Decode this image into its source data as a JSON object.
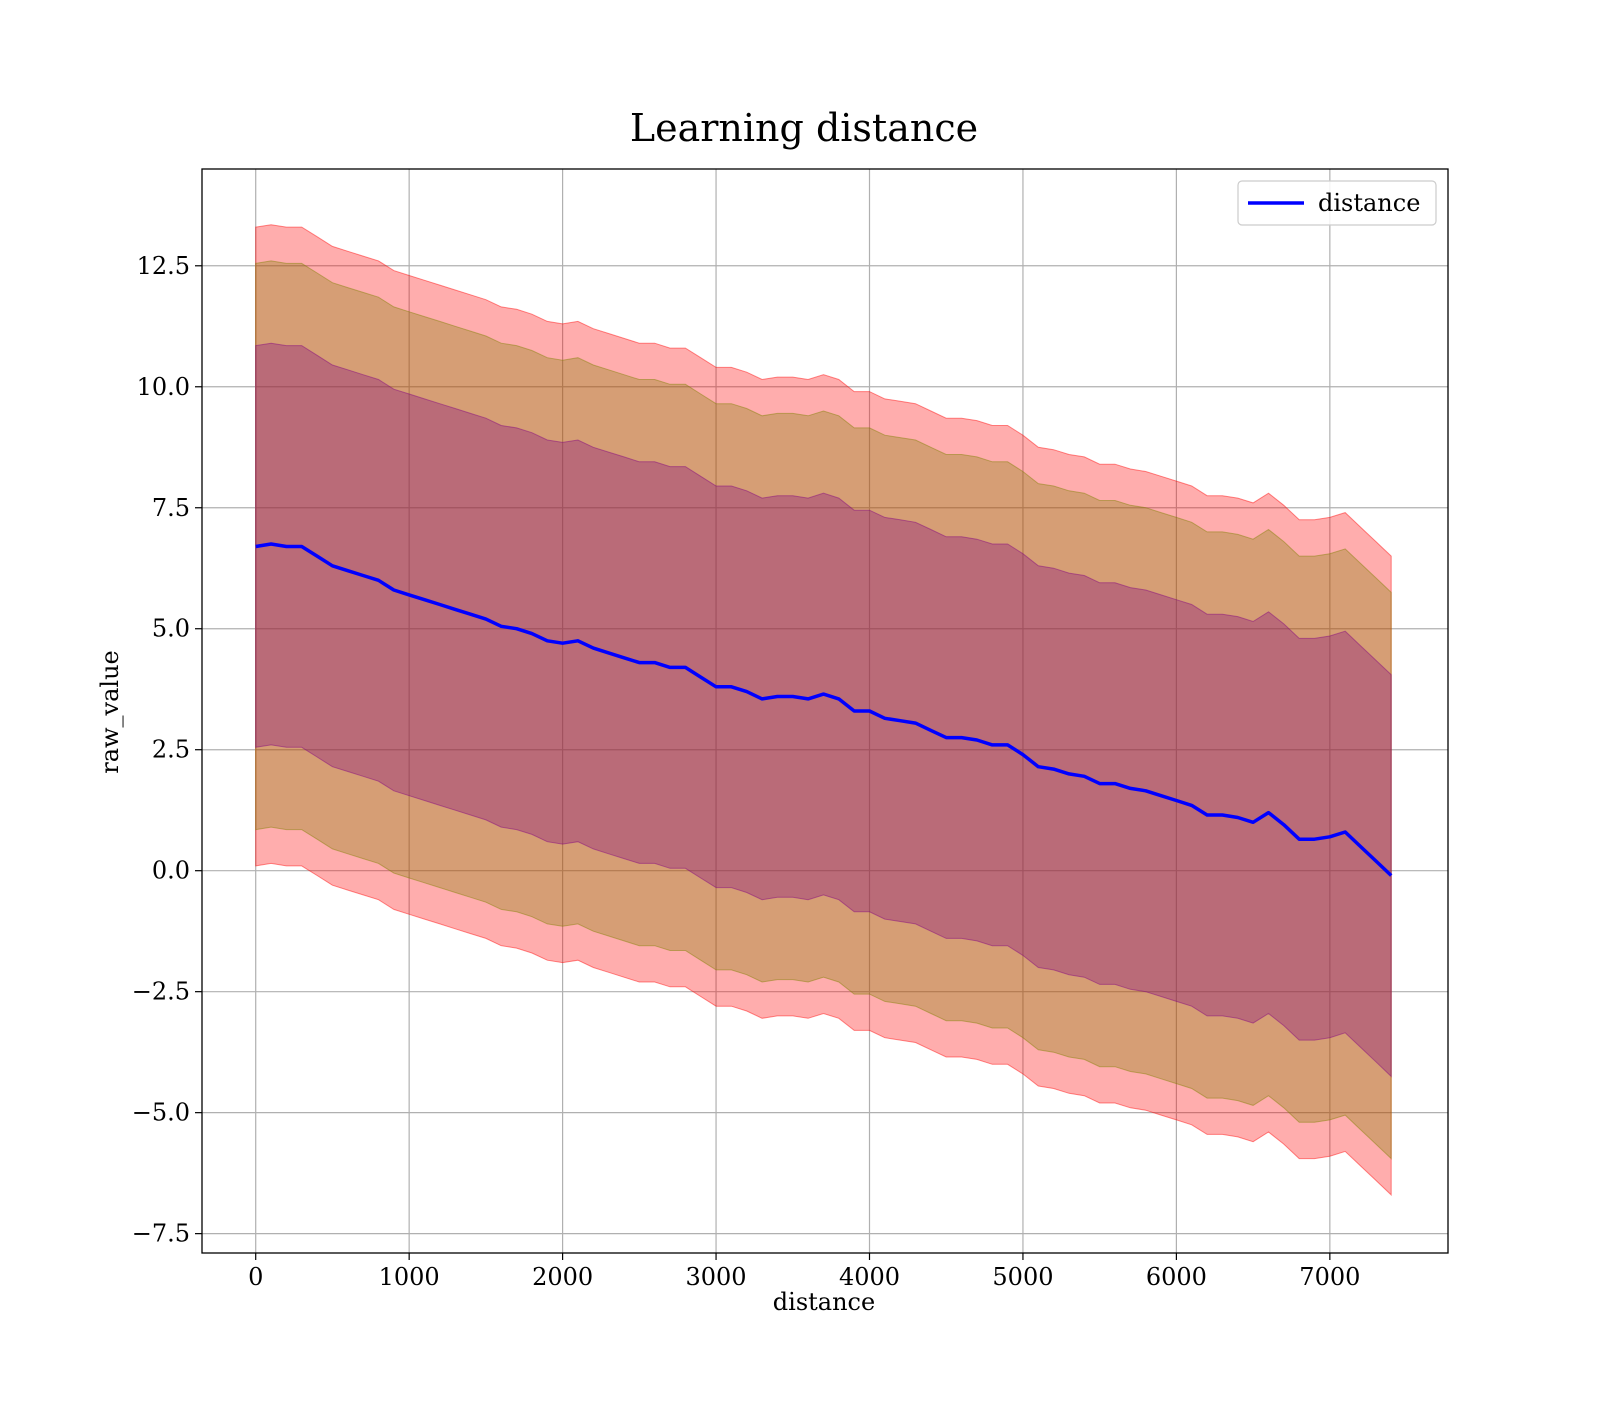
{
  "chart_data": {
    "type": "line",
    "title": "Learning distance",
    "xlabel": "distance",
    "ylabel": "raw_value",
    "xlim": [
      -350,
      7770
    ],
    "ylim": [
      -7.9,
      14.5
    ],
    "xticks": [
      0,
      1000,
      2000,
      3000,
      4000,
      5000,
      6000,
      7000
    ],
    "xtick_labels": [
      "0",
      "1000",
      "2000",
      "3000",
      "4000",
      "5000",
      "6000",
      "7000"
    ],
    "yticks": [
      -7.5,
      -5.0,
      -2.5,
      0.0,
      2.5,
      5.0,
      7.5,
      10.0,
      12.5
    ],
    "ytick_labels": [
      "−7.5",
      "−5.0",
      "−2.5",
      "0.0",
      "2.5",
      "5.0",
      "7.5",
      "10.0",
      "12.5"
    ],
    "grid": true,
    "legend": {
      "placement": "top-right",
      "entries": [
        {
          "label": "distance",
          "color": "#0000ff"
        }
      ]
    },
    "colors": {
      "line": "#0000ff",
      "band_outer": "#ff0000",
      "band_middle": "#808000",
      "band_inner": "#800080"
    },
    "x": [
      0,
      100,
      200,
      300,
      400,
      500,
      600,
      700,
      800,
      900,
      1000,
      1100,
      1200,
      1300,
      1400,
      1500,
      1600,
      1700,
      1800,
      1900,
      2000,
      2100,
      2200,
      2300,
      2400,
      2500,
      2600,
      2700,
      2800,
      2900,
      3000,
      3100,
      3200,
      3300,
      3400,
      3500,
      3600,
      3700,
      3800,
      3900,
      4000,
      4100,
      4200,
      4300,
      4400,
      4500,
      4600,
      4700,
      4800,
      4900,
      5000,
      5100,
      5200,
      5300,
      5400,
      5500,
      5600,
      5700,
      5800,
      5900,
      6000,
      6100,
      6200,
      6300,
      6400,
      6500,
      6600,
      6700,
      6800,
      6900,
      7000,
      7100,
      7200,
      7300,
      7400
    ],
    "series": [
      {
        "name": "distance",
        "values": [
          6.7,
          6.75,
          6.7,
          6.7,
          6.5,
          6.3,
          6.2,
          6.1,
          6.0,
          5.8,
          5.7,
          5.6,
          5.5,
          5.4,
          5.3,
          5.2,
          5.05,
          5.0,
          4.9,
          4.75,
          4.7,
          4.75,
          4.6,
          4.5,
          4.4,
          4.3,
          4.3,
          4.2,
          4.2,
          4.0,
          3.8,
          3.8,
          3.7,
          3.55,
          3.6,
          3.6,
          3.55,
          3.65,
          3.55,
          3.3,
          3.3,
          3.15,
          3.1,
          3.05,
          2.9,
          2.75,
          2.75,
          2.7,
          2.6,
          2.6,
          2.4,
          2.15,
          2.1,
          2.0,
          1.95,
          1.8,
          1.8,
          1.7,
          1.65,
          1.55,
          1.45,
          1.35,
          1.15,
          1.15,
          1.1,
          1.0,
          1.2,
          0.95,
          0.65,
          0.65,
          0.7,
          0.8,
          0.5,
          0.2,
          -0.1
        ]
      }
    ],
    "bands": [
      {
        "label": "outer",
        "half_width": 6.6
      },
      {
        "label": "middle",
        "half_width": 5.85
      },
      {
        "label": "inner",
        "half_width": 4.15
      }
    ]
  }
}
